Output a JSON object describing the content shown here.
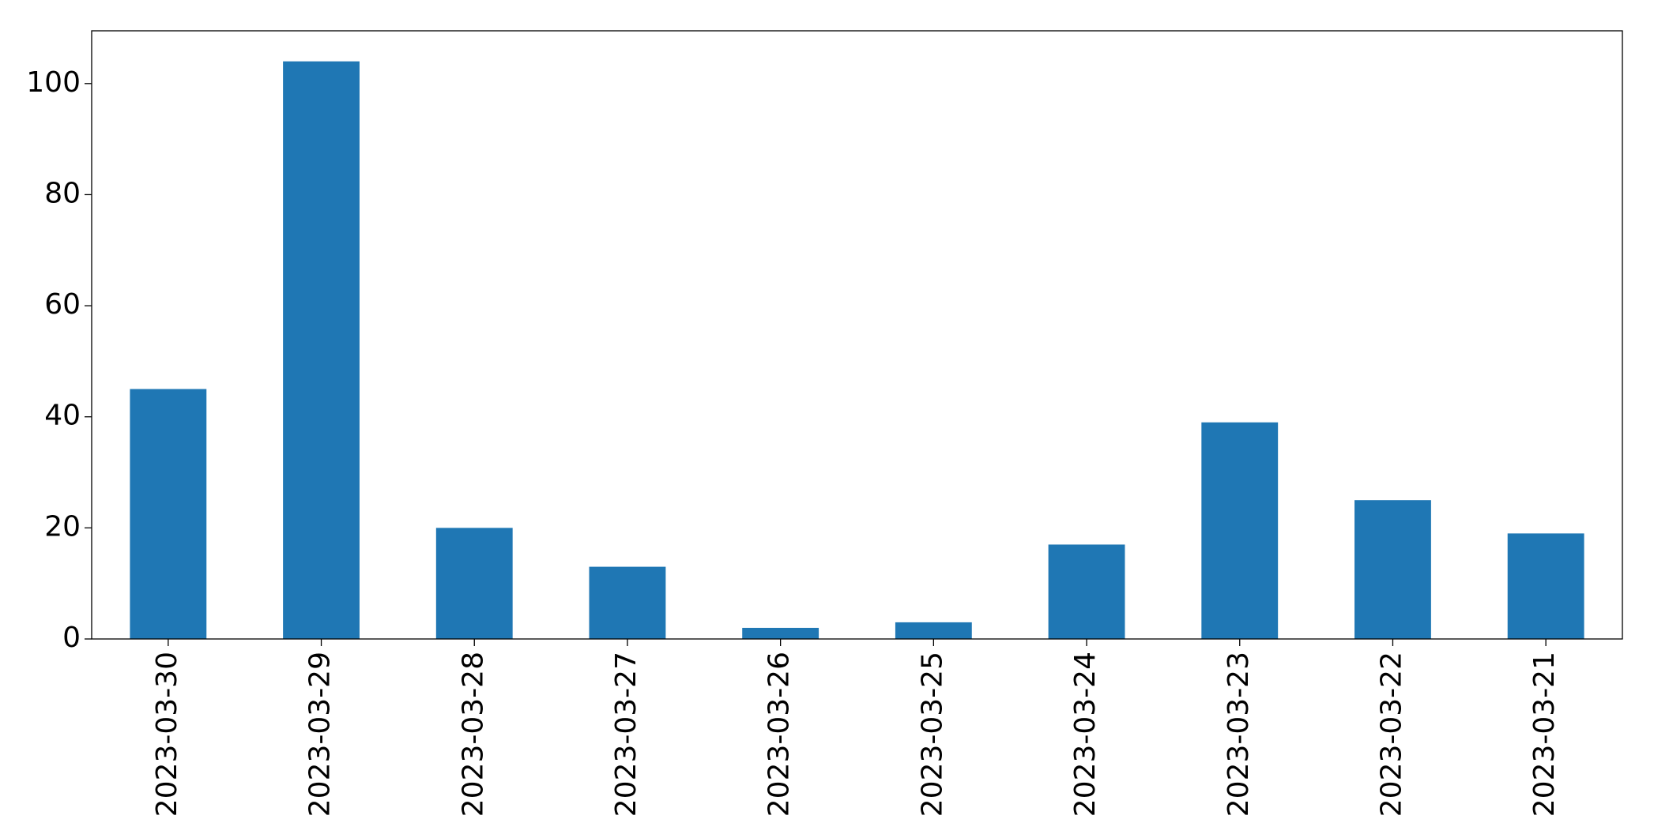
{
  "chart_data": {
    "type": "bar",
    "categories": [
      "2023-03-30",
      "2023-03-29",
      "2023-03-28",
      "2023-03-27",
      "2023-03-26",
      "2023-03-25",
      "2023-03-24",
      "2023-03-23",
      "2023-03-22",
      "2023-03-21"
    ],
    "values": [
      45,
      104,
      20,
      13,
      2,
      3,
      17,
      39,
      25,
      19
    ],
    "color": "#1f77b4",
    "ylim": [
      0,
      109.5
    ],
    "yticks": [
      0,
      20,
      40,
      60,
      80,
      100
    ],
    "grid": false
  }
}
